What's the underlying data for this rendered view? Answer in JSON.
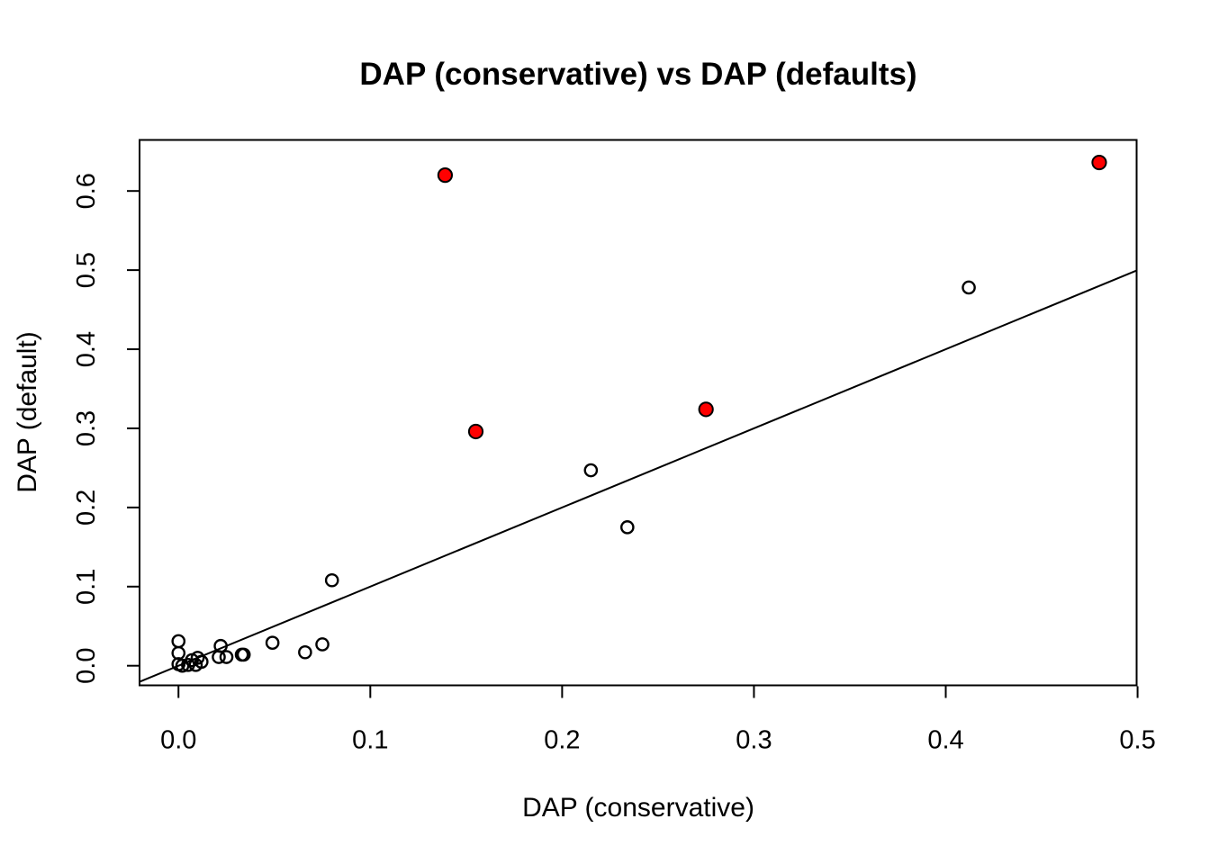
{
  "title": "DAP (conservative) vs DAP (defaults)",
  "colors": {
    "background": "#FFFFFF",
    "foreground": "#000000",
    "highlight": "#FF0000"
  },
  "chart_data": {
    "type": "scatter",
    "title": "DAP (conservative) vs DAP (defaults)",
    "xlabel": "DAP (conservative)",
    "ylabel": "DAP (default)",
    "xlim": [
      -0.0203,
      0.4995
    ],
    "ylim": [
      -0.0248,
      0.6645
    ],
    "x_ticks": [
      0.0,
      0.1,
      0.2,
      0.3,
      0.4,
      0.5
    ],
    "x_tick_labels": [
      "0.0",
      "0.1",
      "0.2",
      "0.3",
      "0.4",
      "0.5"
    ],
    "y_ticks": [
      0.0,
      0.1,
      0.2,
      0.3,
      0.4,
      0.5,
      0.6
    ],
    "y_tick_labels": [
      "0.0",
      "0.1",
      "0.2",
      "0.3",
      "0.4",
      "0.5",
      "0.6"
    ],
    "grid": false,
    "legend_position": "none",
    "series": [
      {
        "name": "points-default",
        "marker": "open-circle",
        "stroke": "#000000",
        "fill": "none",
        "points": [
          [
            0.0,
            0.031
          ],
          [
            0.0,
            0.016
          ],
          [
            0.0,
            0.002
          ],
          [
            0.002,
            0.0
          ],
          [
            0.005,
            0.001
          ],
          [
            0.007,
            0.007
          ],
          [
            0.01,
            0.01
          ],
          [
            0.009,
            0.001
          ],
          [
            0.012,
            0.005
          ],
          [
            0.022,
            0.025
          ],
          [
            0.021,
            0.011
          ],
          [
            0.025,
            0.011
          ],
          [
            0.033,
            0.014
          ],
          [
            0.034,
            0.014
          ],
          [
            0.049,
            0.029
          ],
          [
            0.066,
            0.017
          ],
          [
            0.075,
            0.027
          ],
          [
            0.08,
            0.108
          ],
          [
            0.215,
            0.247
          ],
          [
            0.234,
            0.175
          ],
          [
            0.412,
            0.478
          ]
        ]
      },
      {
        "name": "points-highlighted",
        "marker": "filled-circle",
        "stroke": "#000000",
        "fill": "#FF0000",
        "points": [
          [
            0.139,
            0.62
          ],
          [
            0.155,
            0.296
          ],
          [
            0.275,
            0.324
          ],
          [
            0.48,
            0.636
          ]
        ]
      }
    ],
    "reference_line": {
      "type": "abline",
      "intercept": 0,
      "slope": 1,
      "color": "#000000"
    }
  }
}
